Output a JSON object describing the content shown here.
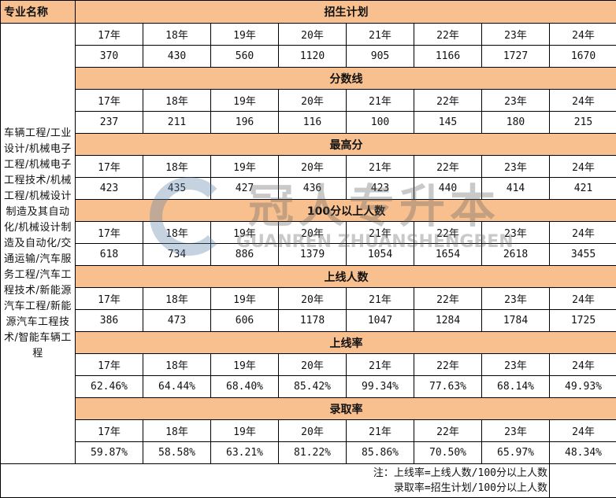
{
  "header": {
    "major_label": "专业名称"
  },
  "major_names": "车辆工程/工业设计/机械电子工程/机械电子工程技术/机械工程/机械设计制造及其自动化/机械设计制造及自动化/交通运输/汽车服务工程/汽车工程技术/新能源汽车工程/新能源汽车工程技术/智能车辆工程",
  "years": [
    "17年",
    "18年",
    "19年",
    "20年",
    "21年",
    "22年",
    "23年",
    "24年"
  ],
  "sections": [
    {
      "title": "招生计划",
      "values": [
        "370",
        "430",
        "560",
        "1120",
        "905",
        "1166",
        "1727",
        "1670"
      ]
    },
    {
      "title": "分数线",
      "values": [
        "237",
        "211",
        "196",
        "116",
        "100",
        "145",
        "180",
        "215"
      ]
    },
    {
      "title": "最高分",
      "values": [
        "423",
        "435",
        "427",
        "436",
        "423",
        "440",
        "414",
        "421"
      ]
    },
    {
      "title": "100分以上人数",
      "values": [
        "618",
        "734",
        "886",
        "1379",
        "1054",
        "1654",
        "2618",
        "3455"
      ]
    },
    {
      "title": "上线人数",
      "values": [
        "386",
        "473",
        "606",
        "1178",
        "1047",
        "1284",
        "1784",
        "1725"
      ]
    },
    {
      "title": "上线率",
      "values": [
        "62.46%",
        "64.44%",
        "68.40%",
        "85.42%",
        "99.34%",
        "77.63%",
        "68.14%",
        "49.93%"
      ]
    },
    {
      "title": "录取率",
      "values": [
        "59.87%",
        "58.58%",
        "63.21%",
        "81.22%",
        "85.86%",
        "70.50%",
        "65.97%",
        "48.34%"
      ]
    }
  ],
  "note": {
    "line1": "注：上线率=上线人数/100分以上人数",
    "line2": "录取率=招生计划/100分以上人数"
  },
  "watermark": {
    "cn": "冠人专升本",
    "en": "GUANREN ZHUANSHENGBEN"
  },
  "colors": {
    "section_bg": "#f8c08f"
  }
}
